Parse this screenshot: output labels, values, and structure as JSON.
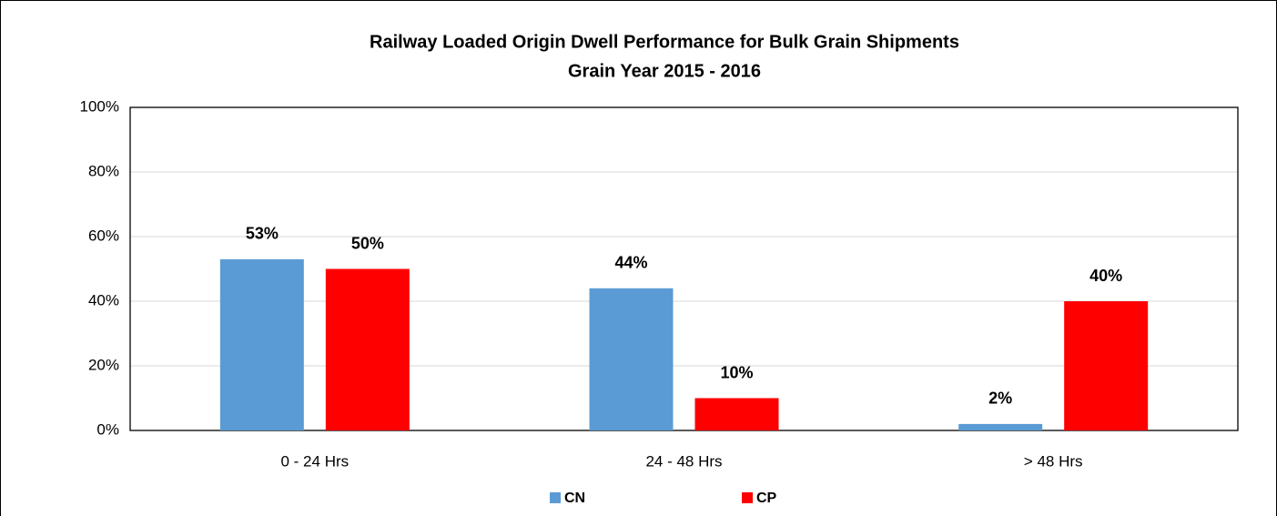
{
  "chart_data": {
    "type": "bar",
    "title": "Railway Loaded Origin Dwell Performance for Bulk Grain Shipments",
    "subtitle": "Grain Year 2015 - 2016",
    "categories": [
      "0 - 24 Hrs",
      "24 - 48 Hrs",
      "> 48 Hrs"
    ],
    "series": [
      {
        "name": "CN",
        "color": "#5b9bd5",
        "values": [
          53,
          44,
          2
        ],
        "value_labels": [
          "53%",
          "44%",
          "2%"
        ]
      },
      {
        "name": "CP",
        "color": "#ff0000",
        "values": [
          50,
          10,
          40
        ],
        "value_labels": [
          "50%",
          "10%",
          "40%"
        ]
      }
    ],
    "ylim": [
      0,
      100
    ],
    "yticks": [
      {
        "value": 0,
        "label": "0%"
      },
      {
        "value": 20,
        "label": "20%"
      },
      {
        "value": 40,
        "label": "40%"
      },
      {
        "value": 60,
        "label": "60%"
      },
      {
        "value": 80,
        "label": "80%"
      },
      {
        "value": 100,
        "label": "100%"
      }
    ],
    "grid": true,
    "legend": "bottom"
  }
}
